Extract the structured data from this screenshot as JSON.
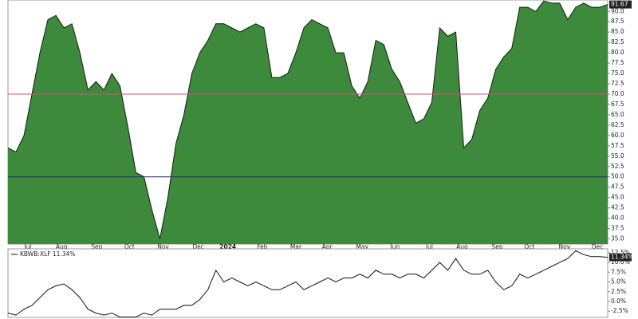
{
  "chart_data": [
    {
      "type": "area",
      "color": "#3d8a3d",
      "line_color": "#1a1a1a",
      "x": [
        0,
        1,
        2,
        3,
        4,
        5,
        6,
        7,
        8,
        9,
        10,
        11,
        12,
        13,
        14,
        15,
        16,
        17,
        18,
        19,
        20,
        21,
        22,
        23,
        24,
        25,
        26,
        27,
        28,
        29,
        30,
        31,
        32,
        33,
        34,
        35,
        36,
        37,
        38,
        39,
        40,
        41,
        42,
        43,
        44,
        45,
        46,
        47,
        48,
        49,
        50,
        51,
        52,
        53,
        54,
        55,
        56,
        57,
        58,
        59,
        60,
        61,
        62,
        63,
        64,
        65,
        66,
        67,
        68,
        69,
        70,
        71,
        72,
        73,
        74,
        75
      ],
      "series": [
        {
          "values": [
            57,
            56,
            60,
            70,
            80,
            88,
            89,
            86,
            87,
            80,
            71,
            73,
            71,
            75,
            72,
            62,
            51,
            50,
            42,
            35,
            45,
            58,
            65,
            75,
            80,
            83,
            87,
            87,
            86,
            85,
            86,
            87,
            86,
            74,
            74,
            75,
            80,
            86,
            88,
            87,
            86,
            80,
            80,
            72,
            69,
            73,
            83,
            82,
            76,
            73,
            68,
            63,
            64,
            68,
            86,
            84,
            85,
            57,
            59,
            66,
            69,
            76,
            79,
            81,
            91,
            91,
            90,
            92.5,
            92,
            92,
            88,
            91,
            92,
            91,
            91,
            91.67
          ]
        }
      ],
      "xlim": [
        0,
        75
      ],
      "xticks": [
        {
          "value": 2.5,
          "label": "Jul"
        },
        {
          "value": 6.7,
          "label": "Aug"
        },
        {
          "value": 11.1,
          "label": "Sep"
        },
        {
          "value": 15.2,
          "label": "Oct"
        },
        {
          "value": 19.4,
          "label": "Nov"
        },
        {
          "value": 23.8,
          "label": "Dec"
        },
        {
          "value": 27.5,
          "label": "2024"
        },
        {
          "value": 31.8,
          "label": "Feb"
        },
        {
          "value": 36,
          "label": "Mar"
        },
        {
          "value": 39.9,
          "label": "Apr"
        },
        {
          "value": 44.3,
          "label": "May"
        },
        {
          "value": 48.4,
          "label": "Jun"
        },
        {
          "value": 52.7,
          "label": "Jul"
        },
        {
          "value": 56.8,
          "label": "Aug"
        },
        {
          "value": 61.2,
          "label": "Sep"
        },
        {
          "value": 65.2,
          "label": "Oct"
        },
        {
          "value": 69.6,
          "label": "Nov"
        },
        {
          "value": 73.7,
          "label": "Dec"
        }
      ],
      "ylim": [
        33.75,
        92.75
      ],
      "yticks": [
        {
          "value": 35,
          "label": "35.0"
        },
        37.5,
        {
          "value": 40,
          "label": "40.0"
        },
        42.5,
        {
          "value": 45,
          "label": "45.0"
        },
        47.5,
        {
          "value": 50,
          "label": "50.0"
        },
        52.5,
        {
          "value": 55,
          "label": "55.0"
        },
        57.5,
        {
          "value": 60,
          "label": "60.0"
        },
        62.5,
        {
          "value": 65,
          "label": "65.0"
        },
        67.5,
        {
          "value": 70,
          "label": "70.0"
        },
        72.5,
        {
          "value": 75,
          "label": "75.0"
        },
        77.5,
        {
          "value": 80,
          "label": "80.0"
        },
        82.5,
        {
          "value": 85,
          "label": "85.0"
        },
        87.5,
        {
          "value": 90,
          "label": "90.0"
        }
      ],
      "hlines": [
        {
          "value": 70,
          "color": "#d9507f"
        },
        {
          "value": 50,
          "color": "#1f2d7a"
        }
      ]
    },
    {
      "type": "line",
      "line_color": "#111111",
      "x": [
        0,
        1,
        2,
        3,
        4,
        5,
        6,
        7,
        8,
        9,
        10,
        11,
        12,
        13,
        14,
        15,
        16,
        17,
        18,
        19,
        20,
        21,
        22,
        23,
        24,
        25,
        26,
        27,
        28,
        29,
        30,
        31,
        32,
        33,
        34,
        35,
        36,
        37,
        38,
        39,
        40,
        41,
        42,
        43,
        44,
        45,
        46,
        47,
        48,
        49,
        50,
        51,
        52,
        53,
        54,
        55,
        56,
        57,
        58,
        59,
        60,
        61,
        62,
        63,
        64,
        65,
        66,
        67,
        68,
        69,
        70,
        71,
        72,
        73,
        74,
        75
      ],
      "series": [
        {
          "name": "KBWB:XLF 11.34%",
          "values": [
            -3,
            -3.5,
            -2,
            -1,
            1,
            3,
            4,
            4.5,
            3,
            1,
            -2,
            -3,
            -3.5,
            -3,
            -4,
            -4,
            -4,
            -3,
            -3.5,
            -2,
            -2,
            -2,
            -1,
            -1,
            0.5,
            3,
            8,
            5,
            6,
            5,
            4,
            5,
            4,
            3,
            3,
            4,
            5,
            3,
            4,
            5,
            6,
            5,
            6,
            6,
            7,
            6,
            8,
            7,
            7,
            6,
            7,
            7,
            6,
            8,
            10,
            8,
            11,
            8,
            7,
            7,
            8,
            5,
            3,
            4,
            7,
            6,
            7,
            8,
            9,
            10,
            11,
            13,
            12,
            11.5,
            11.5,
            11.34
          ],
          "value_labels": [
            null,
            null,
            null,
            null,
            null,
            null,
            null,
            null,
            null,
            null,
            null,
            null,
            null,
            null,
            null,
            null,
            null,
            null,
            null,
            null,
            null,
            null,
            null,
            null,
            null,
            null,
            null,
            null,
            null,
            null,
            null,
            null,
            null,
            null,
            null,
            null,
            null,
            null,
            null,
            null,
            null,
            null,
            null,
            null,
            null,
            null,
            null,
            null,
            null,
            null,
            null,
            null,
            null,
            null,
            null,
            null,
            null,
            null,
            null,
            null,
            null,
            null,
            null,
            null,
            null,
            null,
            null,
            null,
            null,
            null,
            null,
            null,
            null,
            null,
            null,
            "11.34%"
          ]
        }
      ],
      "xlim": [
        0,
        75
      ],
      "ylim": [
        -4.1,
        13.5
      ],
      "yticks": [
        {
          "value": -2.5,
          "label": "-2.5%"
        },
        {
          "value": 0,
          "label": "0.0%"
        },
        {
          "value": 2.5,
          "label": "2.5%"
        },
        {
          "value": 5,
          "label": "5.0%"
        },
        {
          "value": 7.5,
          "label": "7.5%"
        },
        {
          "value": 10,
          "label": "10.0%"
        },
        {
          "value": 12.5,
          "label": "12.5%"
        }
      ]
    }
  ]
}
